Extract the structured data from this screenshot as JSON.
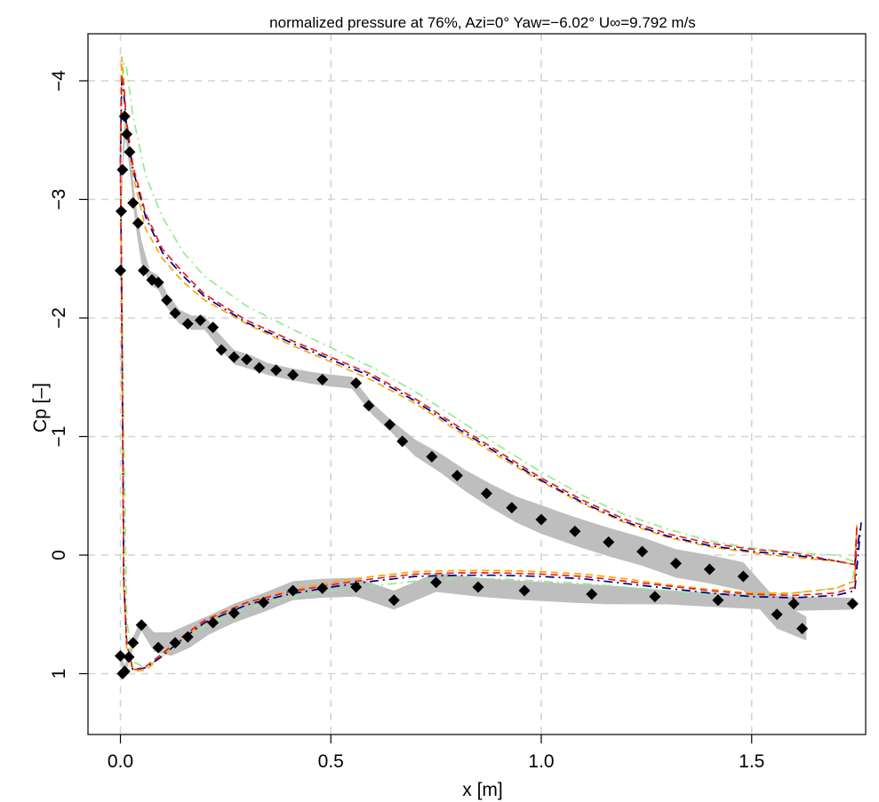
{
  "chart_data": {
    "type": "line",
    "title": "normalized pressure at 76%, Azi=0° Yaw=−6.02° U∞=9.792 m/s",
    "xlabel": "x [m]",
    "ylabel": "Cp [–]",
    "xlim": [
      -0.08,
      1.78
    ],
    "ylim": [
      1.5,
      -4.4
    ],
    "y_inverted": true,
    "grid": true,
    "x_ticks": [
      0.0,
      0.5,
      1.0,
      1.5
    ],
    "x_tick_labels": [
      "0.0",
      "0.5",
      "1.0",
      "1.5"
    ],
    "y_ticks": [
      -4,
      -3,
      -2,
      -1,
      0,
      1
    ],
    "y_tick_labels": [
      "−4",
      "−3",
      "−2",
      "−1",
      "0",
      "1"
    ],
    "uncertainty_band": {
      "color": "#bebebe",
      "upper": {
        "x": [
          0.003,
          0.007,
          0.012,
          0.018,
          0.025,
          0.035,
          0.05,
          0.07,
          0.09,
          0.11,
          0.14,
          0.17,
          0.2,
          0.23,
          0.27,
          0.31,
          0.35,
          0.4,
          0.45,
          0.5,
          0.55,
          0.6,
          0.64,
          0.7,
          0.76,
          0.82,
          0.88,
          0.94,
          1.0,
          1.08,
          1.16,
          1.24,
          1.32,
          1.4,
          1.48,
          1.56,
          1.63
        ],
        "hw": [
          0.12,
          0.12,
          0.12,
          0.12,
          0.1,
          0.1,
          0.1,
          0.06,
          0.06,
          0.06,
          0.06,
          0.06,
          0.06,
          0.06,
          0.06,
          0.06,
          0.05,
          0.05,
          0.05,
          0.05,
          0.05,
          0.05,
          0.05,
          0.07,
          0.08,
          0.09,
          0.1,
          0.11,
          0.12,
          0.12,
          0.12,
          0.12,
          0.12,
          0.12,
          0.12,
          0.12,
          0.1
        ]
      },
      "lower": {
        "x": [
          0.0,
          0.01,
          0.02,
          0.03,
          0.05,
          0.08,
          0.12,
          0.165,
          0.21,
          0.27,
          0.34,
          0.41,
          0.48,
          0.56,
          0.65,
          0.75,
          0.85,
          0.95,
          1.05,
          1.15,
          1.3,
          1.45,
          1.6,
          1.74
        ],
        "hw": [
          0.05,
          0.05,
          0.05,
          0.05,
          0.05,
          0.08,
          0.1,
          0.1,
          0.08,
          0.08,
          0.08,
          0.08,
          0.08,
          0.08,
          0.08,
          0.08,
          0.08,
          0.08,
          0.08,
          0.08,
          0.06,
          0.06,
          0.06,
          0.05
        ]
      }
    },
    "series": [
      {
        "style": "dash-dot",
        "color": "#90ee90",
        "x": [
          0.0,
          0.003,
          0.008,
          0.015,
          0.03,
          0.06,
          0.1,
          0.15,
          0.2,
          0.3,
          0.4,
          0.5,
          0.6,
          0.7,
          0.8,
          0.9,
          1.0,
          1.1,
          1.2,
          1.3,
          1.4,
          1.5,
          1.6,
          1.7,
          1.74,
          1.745,
          1.74,
          1.7,
          1.6,
          1.5,
          1.4,
          1.3,
          1.2,
          1.1,
          1.0,
          0.9,
          0.8,
          0.7,
          0.6,
          0.5,
          0.4,
          0.3,
          0.2,
          0.15,
          0.1,
          0.06,
          0.03,
          0.015,
          0.008,
          0.003,
          0.0
        ],
        "y": [
          -3.2,
          -3.9,
          -4.15,
          -4.1,
          -3.7,
          -3.2,
          -2.85,
          -2.55,
          -2.35,
          -2.1,
          -1.92,
          -1.75,
          -1.58,
          -1.38,
          -1.15,
          -0.92,
          -0.7,
          -0.5,
          -0.34,
          -0.22,
          -0.12,
          -0.06,
          -0.02,
          0.0,
          0.05,
          0.05,
          0.22,
          0.28,
          0.32,
          0.34,
          0.33,
          0.3,
          0.27,
          0.24,
          0.22,
          0.2,
          0.2,
          0.22,
          0.26,
          0.3,
          0.36,
          0.45,
          0.6,
          0.72,
          0.85,
          0.95,
          0.9,
          0.55,
          -1.0,
          -2.5,
          -3.2
        ]
      },
      {
        "style": "dashed",
        "color": "#ffa500",
        "x": [
          0.0,
          0.003,
          0.008,
          0.015,
          0.03,
          0.06,
          0.1,
          0.15,
          0.2,
          0.3,
          0.4,
          0.5,
          0.6,
          0.7,
          0.8,
          0.9,
          1.0,
          1.1,
          1.2,
          1.3,
          1.4,
          1.5,
          1.6,
          1.7,
          1.745,
          1.75,
          1.745,
          1.7,
          1.6,
          1.5,
          1.4,
          1.3,
          1.2,
          1.1,
          1.0,
          0.9,
          0.8,
          0.7,
          0.6,
          0.5,
          0.4,
          0.3,
          0.2,
          0.15,
          0.1,
          0.06,
          0.03,
          0.015,
          0.008,
          0.003,
          0.0
        ],
        "y": [
          -3.5,
          -4.2,
          -4.0,
          -3.6,
          -3.2,
          -2.75,
          -2.5,
          -2.3,
          -2.15,
          -1.95,
          -1.78,
          -1.63,
          -1.47,
          -1.28,
          -1.05,
          -0.83,
          -0.62,
          -0.43,
          -0.27,
          -0.15,
          -0.07,
          -0.02,
          0.02,
          0.05,
          0.08,
          -0.25,
          0.22,
          0.28,
          0.32,
          0.32,
          0.29,
          0.25,
          0.2,
          0.16,
          0.14,
          0.13,
          0.13,
          0.14,
          0.18,
          0.23,
          0.3,
          0.4,
          0.56,
          0.7,
          0.85,
          0.97,
          0.98,
          0.8,
          0.3,
          -2.0,
          -3.5
        ]
      },
      {
        "style": "dash-dot",
        "color": "#00008b",
        "x": [
          0.0,
          0.003,
          0.008,
          0.015,
          0.03,
          0.06,
          0.1,
          0.15,
          0.2,
          0.3,
          0.4,
          0.5,
          0.6,
          0.7,
          0.8,
          0.9,
          1.0,
          1.1,
          1.2,
          1.3,
          1.4,
          1.5,
          1.6,
          1.7,
          1.745,
          1.76,
          1.745,
          1.7,
          1.6,
          1.5,
          1.4,
          1.3,
          1.2,
          1.1,
          1.0,
          0.9,
          0.8,
          0.7,
          0.6,
          0.5,
          0.4,
          0.3,
          0.2,
          0.15,
          0.1,
          0.06,
          0.03,
          0.015,
          0.008,
          0.003,
          0.0
        ],
        "y": [
          -3.3,
          -4.0,
          -3.9,
          -3.6,
          -3.25,
          -2.85,
          -2.55,
          -2.35,
          -2.18,
          -1.96,
          -1.8,
          -1.65,
          -1.5,
          -1.3,
          -1.07,
          -0.85,
          -0.63,
          -0.44,
          -0.28,
          -0.16,
          -0.08,
          -0.03,
          0.0,
          0.05,
          0.08,
          -0.27,
          0.3,
          0.34,
          0.36,
          0.35,
          0.32,
          0.28,
          0.24,
          0.2,
          0.18,
          0.17,
          0.17,
          0.18,
          0.22,
          0.27,
          0.33,
          0.42,
          0.57,
          0.7,
          0.85,
          0.95,
          0.97,
          0.75,
          0.2,
          -2.2,
          -3.3
        ]
      },
      {
        "style": "dashed",
        "color": "#e8221a",
        "x": [
          0.0,
          0.003,
          0.008,
          0.015,
          0.03,
          0.06,
          0.1,
          0.15,
          0.2,
          0.3,
          0.4,
          0.5,
          0.6,
          0.7,
          0.8,
          0.9,
          1.0,
          1.1,
          1.2,
          1.3,
          1.4,
          1.5,
          1.6,
          1.7,
          1.745,
          1.75,
          1.745,
          1.7,
          1.6,
          1.5,
          1.4,
          1.3,
          1.2,
          1.1,
          1.0,
          0.9,
          0.8,
          0.7,
          0.6,
          0.5,
          0.4,
          0.3,
          0.2,
          0.15,
          0.1,
          0.06,
          0.03,
          0.015,
          0.008,
          0.003,
          0.0
        ],
        "y": [
          -3.3,
          -4.05,
          -3.95,
          -3.65,
          -3.28,
          -2.88,
          -2.58,
          -2.38,
          -2.2,
          -1.98,
          -1.82,
          -1.67,
          -1.52,
          -1.32,
          -1.09,
          -0.87,
          -0.65,
          -0.46,
          -0.3,
          -0.18,
          -0.1,
          -0.05,
          -0.02,
          0.05,
          0.08,
          -0.25,
          0.27,
          0.32,
          0.34,
          0.33,
          0.3,
          0.26,
          0.22,
          0.18,
          0.16,
          0.15,
          0.15,
          0.16,
          0.2,
          0.25,
          0.31,
          0.4,
          0.55,
          0.68,
          0.83,
          0.94,
          0.97,
          0.75,
          0.2,
          -2.2,
          -3.3
        ]
      }
    ],
    "measurements": {
      "marker": "diamond",
      "color": "#000000",
      "x": [
        0.0,
        0.002,
        0.005,
        0.01,
        0.015,
        0.022,
        0.03,
        0.042,
        0.055,
        0.075,
        0.09,
        0.11,
        0.13,
        0.16,
        0.19,
        0.22,
        0.24,
        0.27,
        0.3,
        0.33,
        0.37,
        0.41,
        0.48,
        0.56,
        0.59,
        0.64,
        0.67,
        0.74,
        0.8,
        0.87,
        0.93,
        1.0,
        1.08,
        1.16,
        1.24,
        1.32,
        1.4,
        1.48,
        1.56,
        1.62,
        0.0,
        0.005,
        0.01,
        0.02,
        0.03,
        0.05,
        0.09,
        0.13,
        0.16,
        0.22,
        0.27,
        0.34,
        0.41,
        0.48,
        0.56,
        0.65,
        0.75,
        0.85,
        0.96,
        1.12,
        1.27,
        1.42,
        1.6,
        1.74
      ],
      "y": [
        -2.4,
        -2.9,
        -3.25,
        -3.7,
        -3.55,
        -3.4,
        -2.97,
        -2.8,
        -2.4,
        -2.32,
        -2.3,
        -2.15,
        -2.04,
        -1.95,
        -1.98,
        -1.92,
        -1.73,
        -1.67,
        -1.65,
        -1.58,
        -1.56,
        -1.52,
        -1.48,
        -1.45,
        -1.26,
        -1.1,
        -0.96,
        -0.83,
        -0.67,
        -0.52,
        -0.4,
        -0.3,
        -0.2,
        -0.11,
        -0.03,
        0.07,
        0.12,
        0.18,
        0.5,
        0.62,
        0.85,
        1.0,
        0.98,
        0.86,
        0.74,
        0.59,
        0.78,
        0.74,
        0.69,
        0.57,
        0.49,
        0.4,
        0.3,
        0.28,
        0.27,
        0.38,
        0.23,
        0.27,
        0.3,
        0.33,
        0.35,
        0.38,
        0.41,
        0.41
      ]
    }
  }
}
